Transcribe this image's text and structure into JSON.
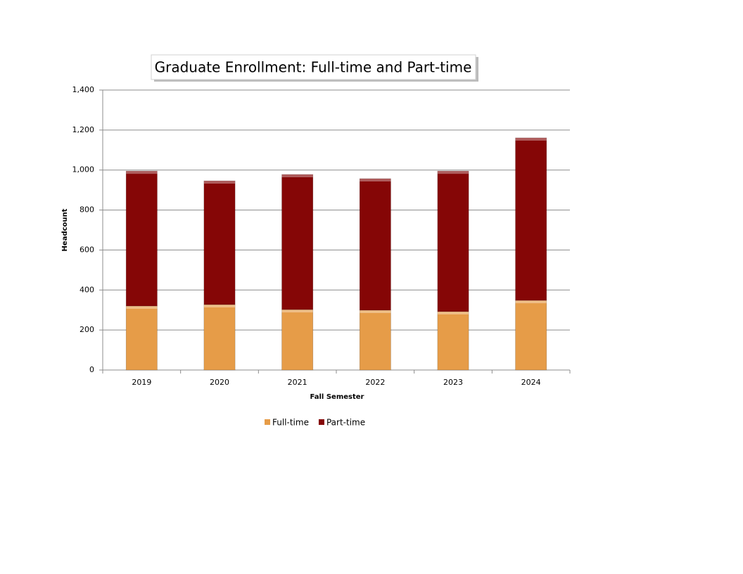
{
  "chart_data": {
    "type": "stacked-bar",
    "title": "Graduate Enrollment: Full-time and Part-time",
    "x_label": "Fall Semester",
    "y_label": "Headcount",
    "categories": [
      "2019",
      "2020",
      "2021",
      "2022",
      "2023",
      "2024"
    ],
    "series": [
      {
        "name": "Full-time",
        "color": "#e69c48",
        "values": [
          320,
          327,
          302,
          299,
          292,
          348
        ]
      },
      {
        "name": "Part-time",
        "color": "#850606",
        "values": [
          675,
          619,
          676,
          658,
          703,
          813
        ]
      }
    ],
    "ylim": [
      0,
      1400
    ],
    "yticks": [
      0,
      200,
      400,
      600,
      800,
      {
        "value": 1000,
        "label": "1,000"
      },
      {
        "value": 1200,
        "label": "1,200"
      },
      {
        "value": 1400,
        "label": "1,400"
      }
    ],
    "grid": true,
    "legend": "bottom"
  }
}
